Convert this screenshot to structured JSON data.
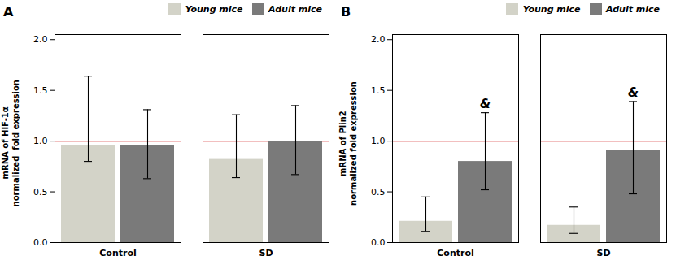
{
  "chart_data": [
    {
      "type": "bar",
      "title": "A",
      "ylabel": "mRNA of HIF-1α\nnormalized  fold expression",
      "categories": [
        "Control",
        "SD"
      ],
      "series": [
        {
          "name": "Young mice",
          "color": "#d3d3c8",
          "values": [
            0.96,
            0.82
          ],
          "error_upper": [
            0.68,
            0.44
          ],
          "error_lower": [
            0.16,
            0.18
          ]
        },
        {
          "name": "Adult mice",
          "color": "#7a7a7a",
          "values": [
            0.96,
            1.0
          ],
          "error_upper": [
            0.35,
            0.35
          ],
          "error_lower": [
            0.33,
            0.33
          ]
        }
      ],
      "reference_line": {
        "y": 1.0,
        "color": "#cc0000"
      },
      "annotations": [],
      "ylim": [
        0,
        2.05
      ],
      "yticks": [
        {
          "value": 0.0,
          "label": "0.0"
        },
        0.5,
        {
          "value": 1.0,
          "label": "1.0"
        },
        1.5,
        {
          "value": 2.0,
          "label": "2.0"
        }
      ],
      "legend": "upper right",
      "grid": false
    },
    {
      "type": "bar",
      "title": "B",
      "ylabel": "mRNA of Plin2\nnormalized fold expression",
      "categories": [
        "Control",
        "SD"
      ],
      "series": [
        {
          "name": "Young mice",
          "color": "#d3d3c8",
          "values": [
            0.21,
            0.17
          ],
          "error_upper": [
            0.24,
            0.18
          ],
          "error_lower": [
            0.1,
            0.08
          ]
        },
        {
          "name": "Adult mice",
          "color": "#7a7a7a",
          "values": [
            0.8,
            0.91
          ],
          "error_upper": [
            0.48,
            0.48
          ],
          "error_lower": [
            0.28,
            0.43
          ]
        }
      ],
      "reference_line": {
        "y": 1.0,
        "color": "#cc0000"
      },
      "annotations": [
        {
          "text": "&",
          "category": "Control",
          "series": "Adult mice"
        },
        {
          "text": "&",
          "category": "SD",
          "series": "Adult mice"
        }
      ],
      "ylim": [
        0,
        2.05
      ],
      "yticks": [
        {
          "value": 0.0,
          "label": "0.0"
        },
        0.5,
        {
          "value": 1.0,
          "label": "1.0"
        },
        1.5,
        {
          "value": 2.0,
          "label": "2.0"
        }
      ],
      "legend": "upper right",
      "grid": false
    }
  ]
}
